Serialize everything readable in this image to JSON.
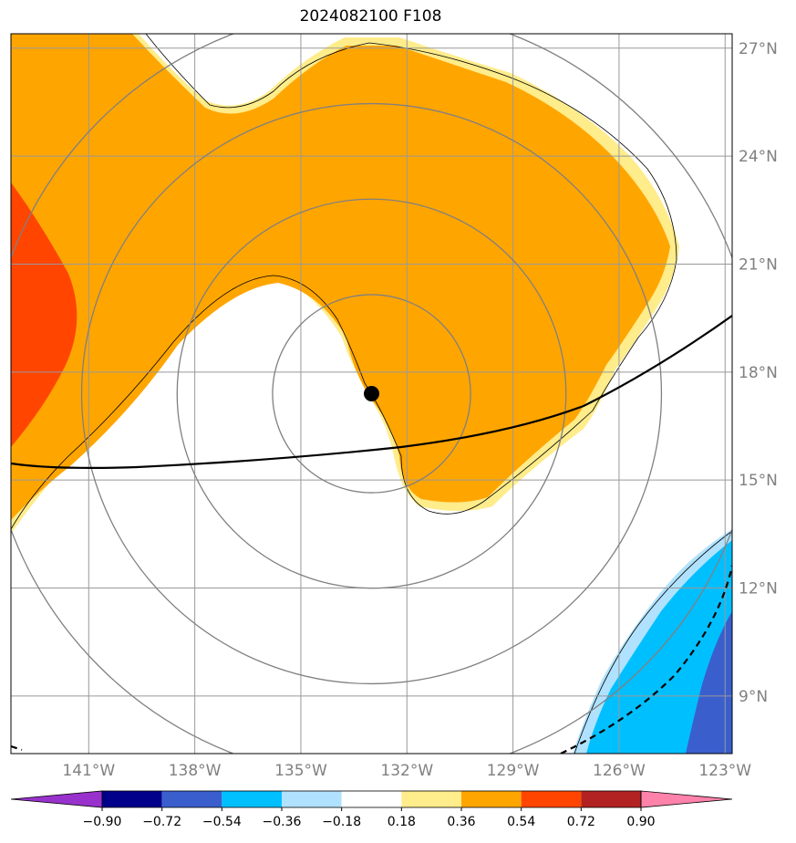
{
  "title": "2024082100 F108",
  "map": {
    "lon_range": [
      -143.2,
      -122.8
    ],
    "lat_range": [
      7.4,
      27.4
    ],
    "lon_ticks": [
      {
        "value": -141,
        "label": "141°W"
      },
      {
        "value": -138,
        "label": "138°W"
      },
      {
        "value": -135,
        "label": "135°W"
      },
      {
        "value": -132,
        "label": "132°W"
      },
      {
        "value": -129,
        "label": "129°W"
      },
      {
        "value": -126,
        "label": "126°W"
      },
      {
        "value": -123,
        "label": "123°W"
      }
    ],
    "lat_ticks": [
      {
        "value": 9,
        "label": "9°N"
      },
      {
        "value": 12,
        "label": "12°N"
      },
      {
        "value": 15,
        "label": "15°N"
      },
      {
        "value": 18,
        "label": "18°N"
      },
      {
        "value": 21,
        "label": "21°N"
      },
      {
        "value": 24,
        "label": "24°N"
      },
      {
        "value": 27,
        "label": "27°N"
      }
    ],
    "storm_center": {
      "lon": -133.0,
      "lat": 17.4
    },
    "range_rings_deg": [
      2.8,
      5.5,
      8.2,
      10.9
    ],
    "gridline_color": "#999999",
    "ring_color": "#808080"
  },
  "colorbar": {
    "boundaries": [
      "−0.90",
      "−0.72",
      "−0.54",
      "−0.36",
      "−0.18",
      "0.18",
      "0.36",
      "0.54",
      "0.72",
      "0.90"
    ],
    "colors": [
      "#9932cc",
      "#00008b",
      "#3a5fcd",
      "#00bfff",
      "#b0e2ff",
      "#ffffff",
      "#ffec8b",
      "#ffa500",
      "#ff4500",
      "#b22222",
      "#ff82ab"
    ]
  }
}
